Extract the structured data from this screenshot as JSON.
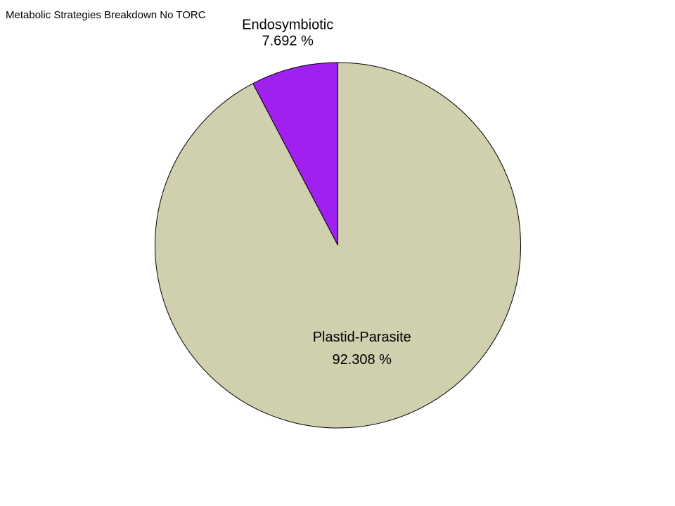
{
  "chart_data": {
    "type": "pie",
    "title": "Metabolic Strategies Breakdown No TORC",
    "slices": [
      {
        "label": "Endosymbiotic",
        "value": 7.692,
        "value_label": "7.692 %",
        "color": "#A020F0"
      },
      {
        "label": "Plastid-Parasite",
        "value": 92.308,
        "value_label": "92.308 %",
        "color": "#D0D0AE"
      }
    ],
    "start_angle": "12 o'clock",
    "direction": "counterclockwise",
    "legend": "none"
  }
}
